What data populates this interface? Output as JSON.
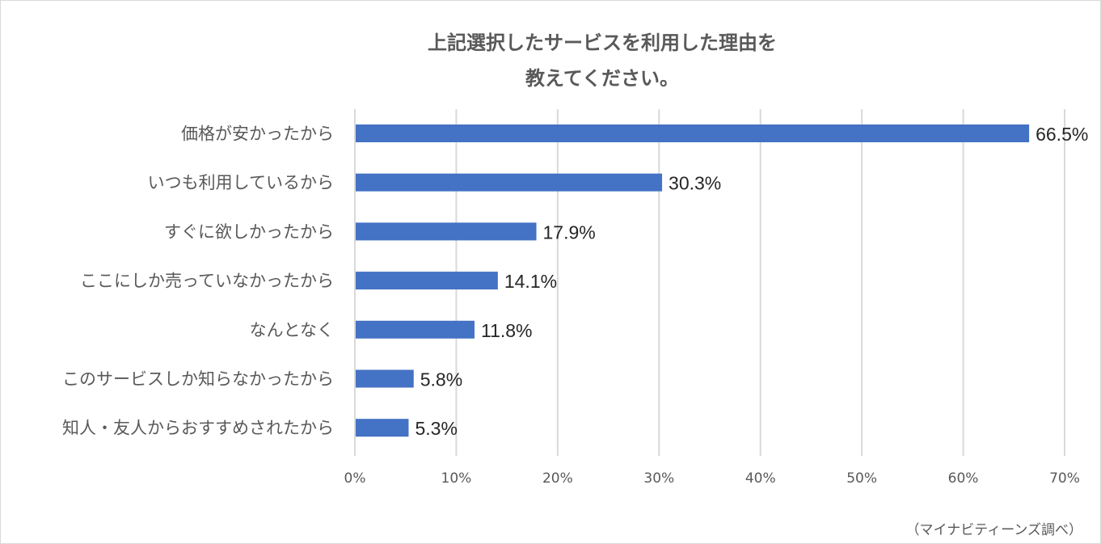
{
  "chart_data": {
    "type": "bar",
    "orientation": "horizontal",
    "title_lines": [
      "上記選択したサービスを利用した理由を",
      "教えてください。"
    ],
    "categories": [
      "価格が安かったから",
      "いつも利用しているから",
      "すぐに欲しかったから",
      "ここにしか売っていなかったから",
      "なんとなく",
      "このサービスしか知らなかったから",
      "知人・友人からおすすめされたから"
    ],
    "values": [
      66.5,
      30.3,
      17.9,
      14.1,
      11.8,
      5.8,
      5.3
    ],
    "value_labels": [
      "66.5%",
      "30.3%",
      "17.9%",
      "14.1%",
      "11.8%",
      "5.8%",
      "5.3%"
    ],
    "x_ticks": [
      0,
      10,
      20,
      30,
      40,
      50,
      60,
      70
    ],
    "x_tick_labels": [
      "0%",
      "10%",
      "20%",
      "30%",
      "40%",
      "50%",
      "60%",
      "70%"
    ],
    "xlim": [
      0,
      70
    ],
    "grid": "vertical",
    "bar_color": "#4472c4",
    "source": "（マイナビティーンズ調べ）"
  }
}
